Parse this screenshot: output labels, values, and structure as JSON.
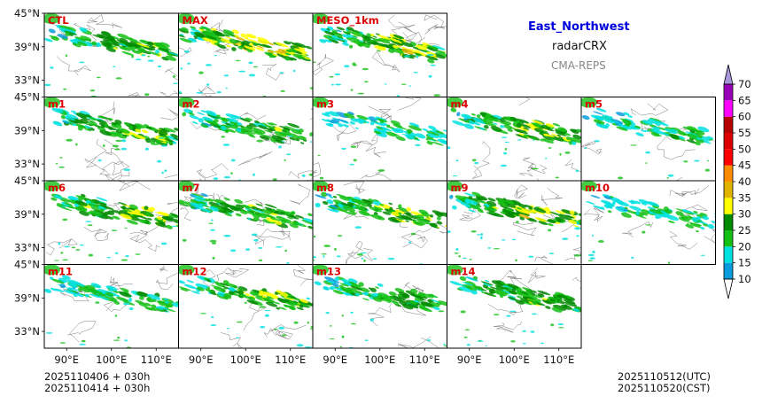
{
  "header": {
    "region": "East_Northwest",
    "variable": "radarCRX",
    "model": "CMA-REPS"
  },
  "footer": {
    "init_line_1": "2025110406  +  030h",
    "init_line_2": "2025110414  +  030h",
    "valid_utc": "2025110512(UTC)",
    "valid_cst": "2025110520(CST)"
  },
  "chart_data": {
    "type": "heatmap",
    "title": "East_Northwest radarCRX CMA-REPS",
    "lon_ticks": [
      "90°E",
      "100°E",
      "110°E"
    ],
    "lat_ticks": [
      "45°N",
      "39°N",
      "33°N"
    ],
    "lon_values": [
      90,
      100,
      110
    ],
    "lat_values": [
      45,
      39,
      33
    ],
    "xlim": [
      85,
      115
    ],
    "ylim": [
      30,
      45
    ],
    "panels": [
      {
        "label": "CTL",
        "row": 0,
        "col": 0,
        "intensity": 0.75
      },
      {
        "label": "MAX",
        "row": 0,
        "col": 1,
        "intensity": 1.0
      },
      {
        "label": "MESO_1km",
        "row": 0,
        "col": 2,
        "intensity": 0.9
      },
      {
        "label": "m1",
        "row": 1,
        "col": 0,
        "intensity": 0.8
      },
      {
        "label": "m2",
        "row": 1,
        "col": 1,
        "intensity": 0.7
      },
      {
        "label": "m3",
        "row": 1,
        "col": 2,
        "intensity": 0.45
      },
      {
        "label": "m4",
        "row": 1,
        "col": 3,
        "intensity": 0.8
      },
      {
        "label": "m5",
        "row": 1,
        "col": 4,
        "intensity": 0.55
      },
      {
        "label": "m6",
        "row": 2,
        "col": 0,
        "intensity": 0.85
      },
      {
        "label": "m7",
        "row": 2,
        "col": 1,
        "intensity": 0.75
      },
      {
        "label": "m8",
        "row": 2,
        "col": 2,
        "intensity": 0.8
      },
      {
        "label": "m9",
        "row": 2,
        "col": 3,
        "intensity": 0.9
      },
      {
        "label": "m10",
        "row": 2,
        "col": 4,
        "intensity": 0.5
      },
      {
        "label": "m11",
        "row": 3,
        "col": 0,
        "intensity": 0.6
      },
      {
        "label": "m12",
        "row": 3,
        "col": 1,
        "intensity": 0.8
      },
      {
        "label": "m13",
        "row": 3,
        "col": 2,
        "intensity": 0.65
      },
      {
        "label": "m14",
        "row": 3,
        "col": 3,
        "intensity": 0.75
      }
    ],
    "colorbar": {
      "levels": [
        10,
        15,
        20,
        25,
        30,
        35,
        40,
        45,
        50,
        55,
        60,
        65,
        70
      ],
      "colors": [
        "#0a9bdc",
        "#00e0e0",
        "#15c115",
        "#008b00",
        "#ffff00",
        "#e0b400",
        "#ff8c00",
        "#ff0000",
        "#dd0000",
        "#b40000",
        "#ff00ff",
        "#9a00b8",
        "#a897d8"
      ],
      "under_color": "#ffffff",
      "over_color": "#a897d8",
      "extend": "both"
    },
    "label_color": "#dd0000"
  }
}
